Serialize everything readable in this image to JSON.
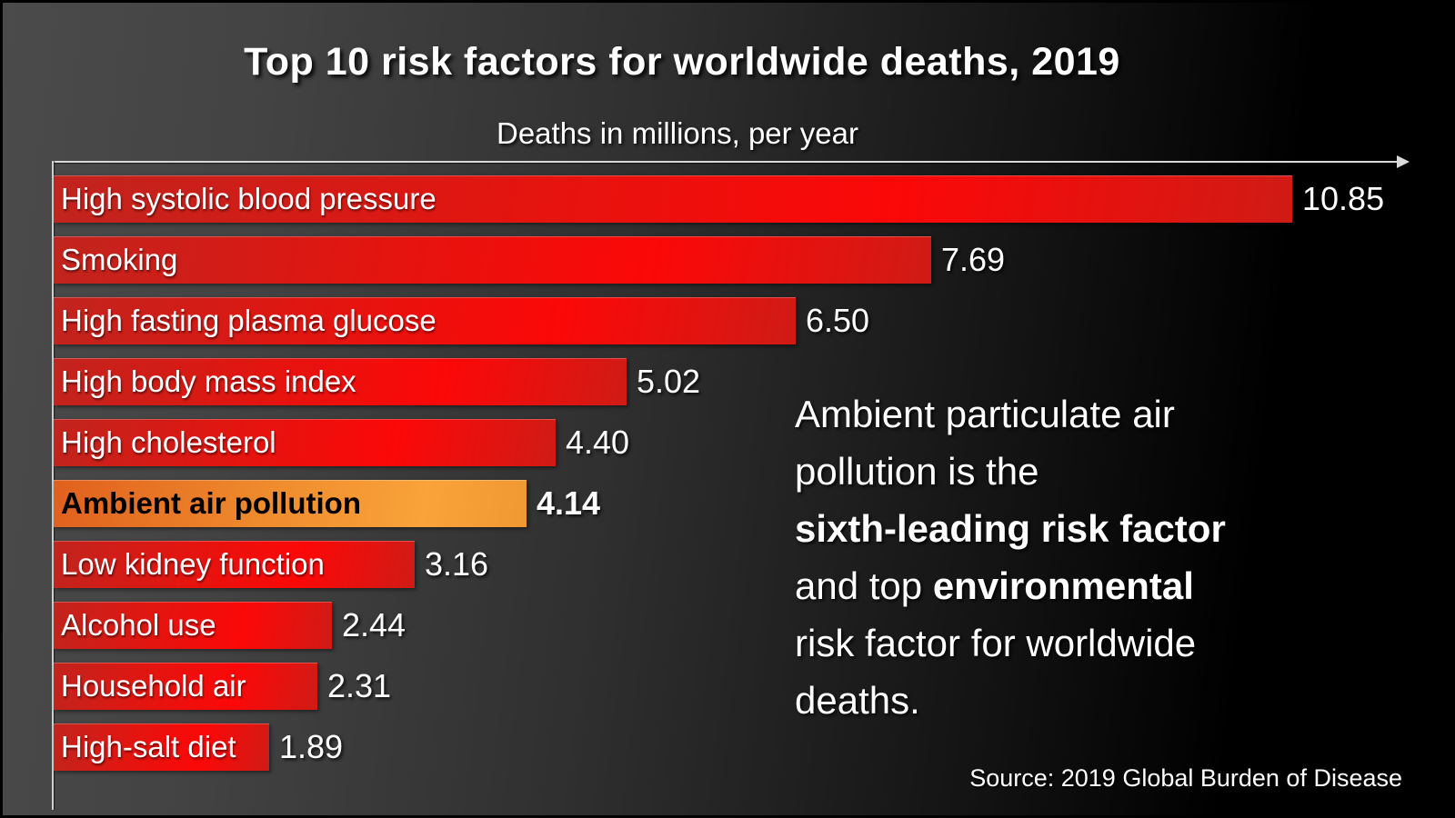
{
  "title": "Top 10 risk factors for worldwide deaths, 2019",
  "subtitle": "Deaths in millions, per year",
  "source": {
    "text": "Source: 2019 Global Burden of Disease"
  },
  "chart_data": {
    "type": "bar",
    "orientation": "horizontal",
    "title": "Top 10 risk factors for worldwide deaths, 2019",
    "xlabel": "Deaths in millions, per year",
    "ylabel": "",
    "xlim": [
      0,
      11.8
    ],
    "grid": false,
    "legend": "none",
    "categories": [
      "High systolic blood pressure",
      "Smoking",
      "High fasting plasma glucose",
      "High body mass index",
      "High cholesterol",
      "Ambient air pollution",
      "Low kidney function",
      "Alcohol use",
      "Household air",
      "High-salt diet"
    ],
    "values": [
      10.85,
      7.69,
      6.5,
      5.02,
      4.4,
      4.14,
      3.16,
      2.44,
      2.31,
      1.89
    ],
    "value_labels": [
      "10.85",
      "7.69",
      "6.50",
      "5.02",
      "4.40",
      "4.14",
      "3.16",
      "2.44",
      "2.31",
      "1.89"
    ],
    "highlight_index": 5,
    "colors": {
      "bar_red_dark": "#c1241e",
      "bar_red_bright": "#fb0808",
      "highlight_orange_dark": "#e0601d",
      "highlight_orange_bright": "#f9a33a",
      "axis": "#d9d9d9",
      "text": "#ffffff",
      "highlight_text": "#000000"
    }
  },
  "annotation": {
    "lines": [
      [
        {
          "text": "Ambient particulate air",
          "bold": false
        }
      ],
      [
        {
          "text": "pollution is the",
          "bold": false
        }
      ],
      [
        {
          "text": "sixth-leading risk factor",
          "bold": true
        }
      ],
      [
        {
          "text": "and top ",
          "bold": false
        },
        {
          "text": "environmental",
          "bold": true
        }
      ],
      [
        {
          "text": "risk factor for worldwide",
          "bold": false
        }
      ],
      [
        {
          "text": "deaths.",
          "bold": false
        }
      ]
    ]
  }
}
